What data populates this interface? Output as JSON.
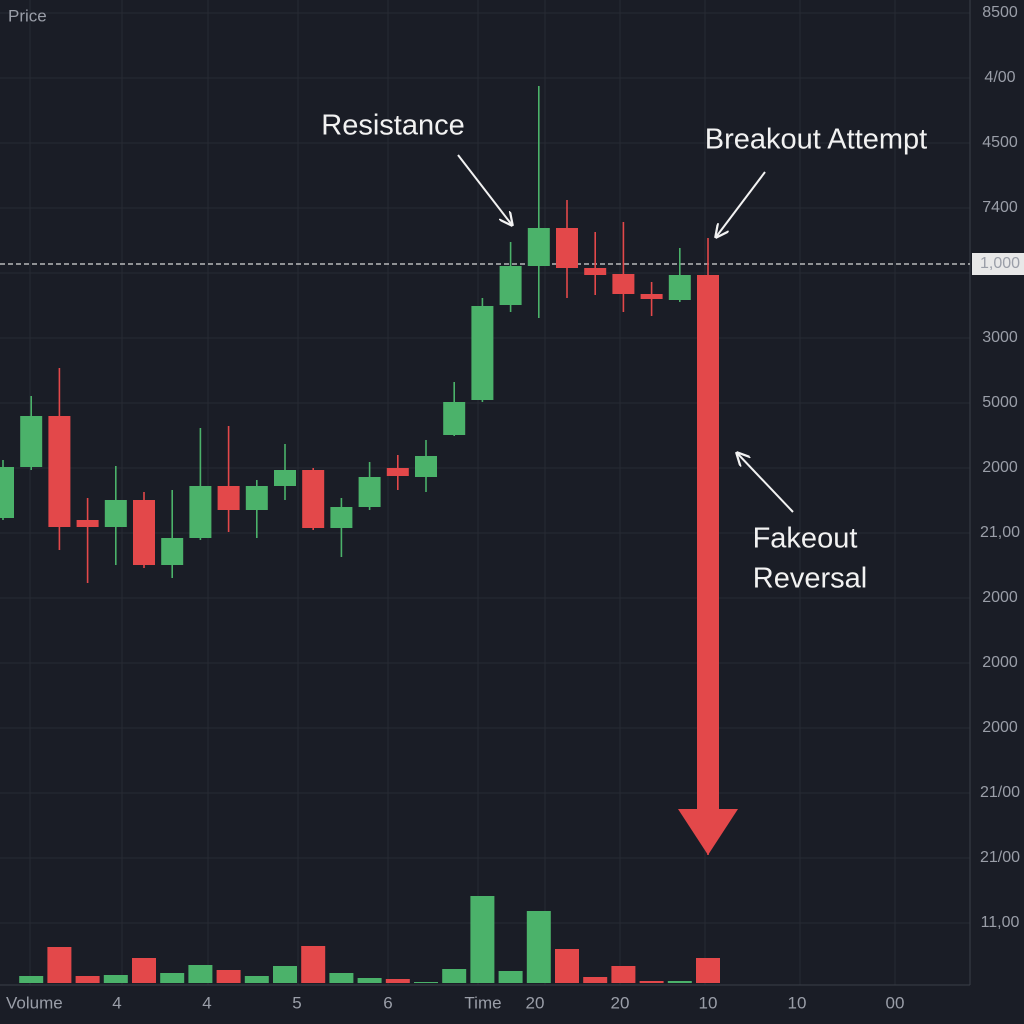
{
  "chart_data": {
    "type": "candlestick",
    "title": "Price",
    "x_axis_label": "Time",
    "volume_label": "Volume",
    "x_labels": [
      "4",
      "4",
      "5",
      "6",
      "20",
      "20",
      "10",
      "10",
      "00"
    ],
    "price_labels": [
      "8500",
      "4/00",
      "4500",
      "7400",
      "1,000",
      "3000",
      "5000",
      "2000",
      "21,00",
      "2000",
      "2000",
      "2000",
      "21/00",
      "21/00",
      "11,00"
    ],
    "resistance": 721,
    "ylim": [
      0,
      1000
    ],
    "candles": [
      [
        467,
        525,
        465,
        518
      ],
      [
        518,
        589,
        515,
        569
      ],
      [
        569,
        617,
        435,
        458
      ],
      [
        465,
        487,
        402,
        458
      ],
      [
        458,
        519,
        420,
        485
      ],
      [
        485,
        493,
        417,
        420
      ],
      [
        420,
        495,
        407,
        447
      ],
      [
        447,
        557,
        445,
        499
      ],
      [
        499,
        559,
        453,
        475
      ],
      [
        475,
        505,
        447,
        499
      ],
      [
        499,
        541,
        485,
        515
      ],
      [
        515,
        517,
        455,
        457
      ],
      [
        457,
        487,
        428,
        478
      ],
      [
        478,
        523,
        475,
        508
      ],
      [
        517,
        530,
        495,
        509
      ],
      [
        508,
        545,
        493,
        529
      ],
      [
        550,
        603,
        549,
        583
      ],
      [
        585,
        687,
        583,
        679
      ],
      [
        680,
        743,
        673,
        719
      ],
      [
        719,
        899,
        667,
        757
      ],
      [
        757,
        785,
        687,
        717
      ],
      [
        717,
        753,
        690,
        710
      ],
      [
        711,
        763,
        673,
        691
      ],
      [
        691,
        703,
        669,
        686
      ],
      [
        685,
        737,
        683,
        710
      ],
      [
        710,
        747,
        130,
        130
      ]
    ],
    "volume": [
      null,
      7,
      36,
      7,
      8,
      25,
      10,
      18,
      13,
      7,
      17,
      37,
      10,
      5,
      4,
      1,
      14,
      87,
      12,
      72,
      34,
      6,
      17,
      2,
      2,
      25
    ],
    "volume_lim": [
      0,
      100
    ],
    "up_color": "#4bb26a",
    "down_color": "#e3484a",
    "annotations": [
      "Resistance",
      "Breakout Attempt",
      "Fakeout",
      "Reversal"
    ]
  }
}
